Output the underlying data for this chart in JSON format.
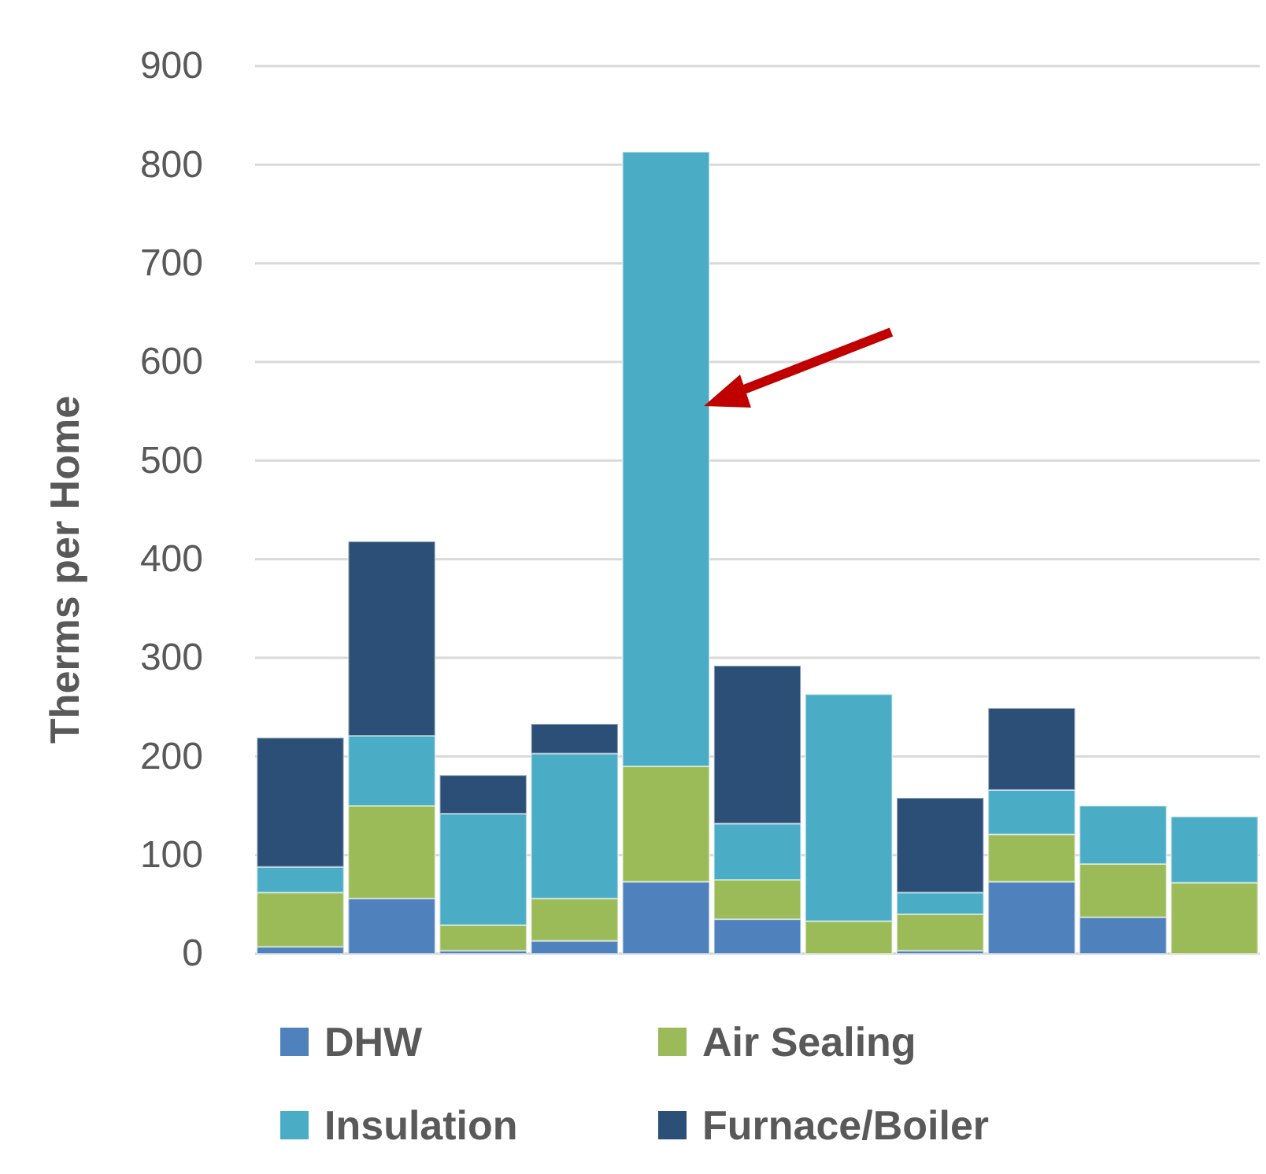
{
  "chart_data": {
    "type": "bar",
    "stacked": true,
    "ylabel": "Therms per Home",
    "categories": [
      null,
      null,
      null,
      null,
      null,
      null,
      null,
      null,
      null,
      null,
      null
    ],
    "series": [
      {
        "name": "DHW",
        "color": "#4f81bd",
        "values": [
          7,
          56,
          3,
          13,
          73,
          35,
          0,
          3,
          73,
          37,
          0
        ]
      },
      {
        "name": "Air Sealing",
        "color": "#9bbb59",
        "values": [
          55,
          94,
          26,
          43,
          117,
          40,
          33,
          37,
          48,
          54,
          72
        ]
      },
      {
        "name": "Insulation",
        "color": "#4bacc6",
        "values": [
          26,
          71,
          113,
          147,
          623,
          57,
          230,
          22,
          45,
          59,
          67
        ]
      },
      {
        "name": "Furnace/Boiler",
        "color": "#2c4f77",
        "values": [
          131,
          197,
          39,
          30,
          0,
          160,
          0,
          96,
          83,
          0,
          0
        ]
      }
    ],
    "ylim": [
      0,
      900
    ],
    "yticks": [
      0,
      100,
      200,
      300,
      400,
      500,
      600,
      700,
      800,
      900
    ],
    "grid": "y",
    "legend": "bottom"
  }
}
